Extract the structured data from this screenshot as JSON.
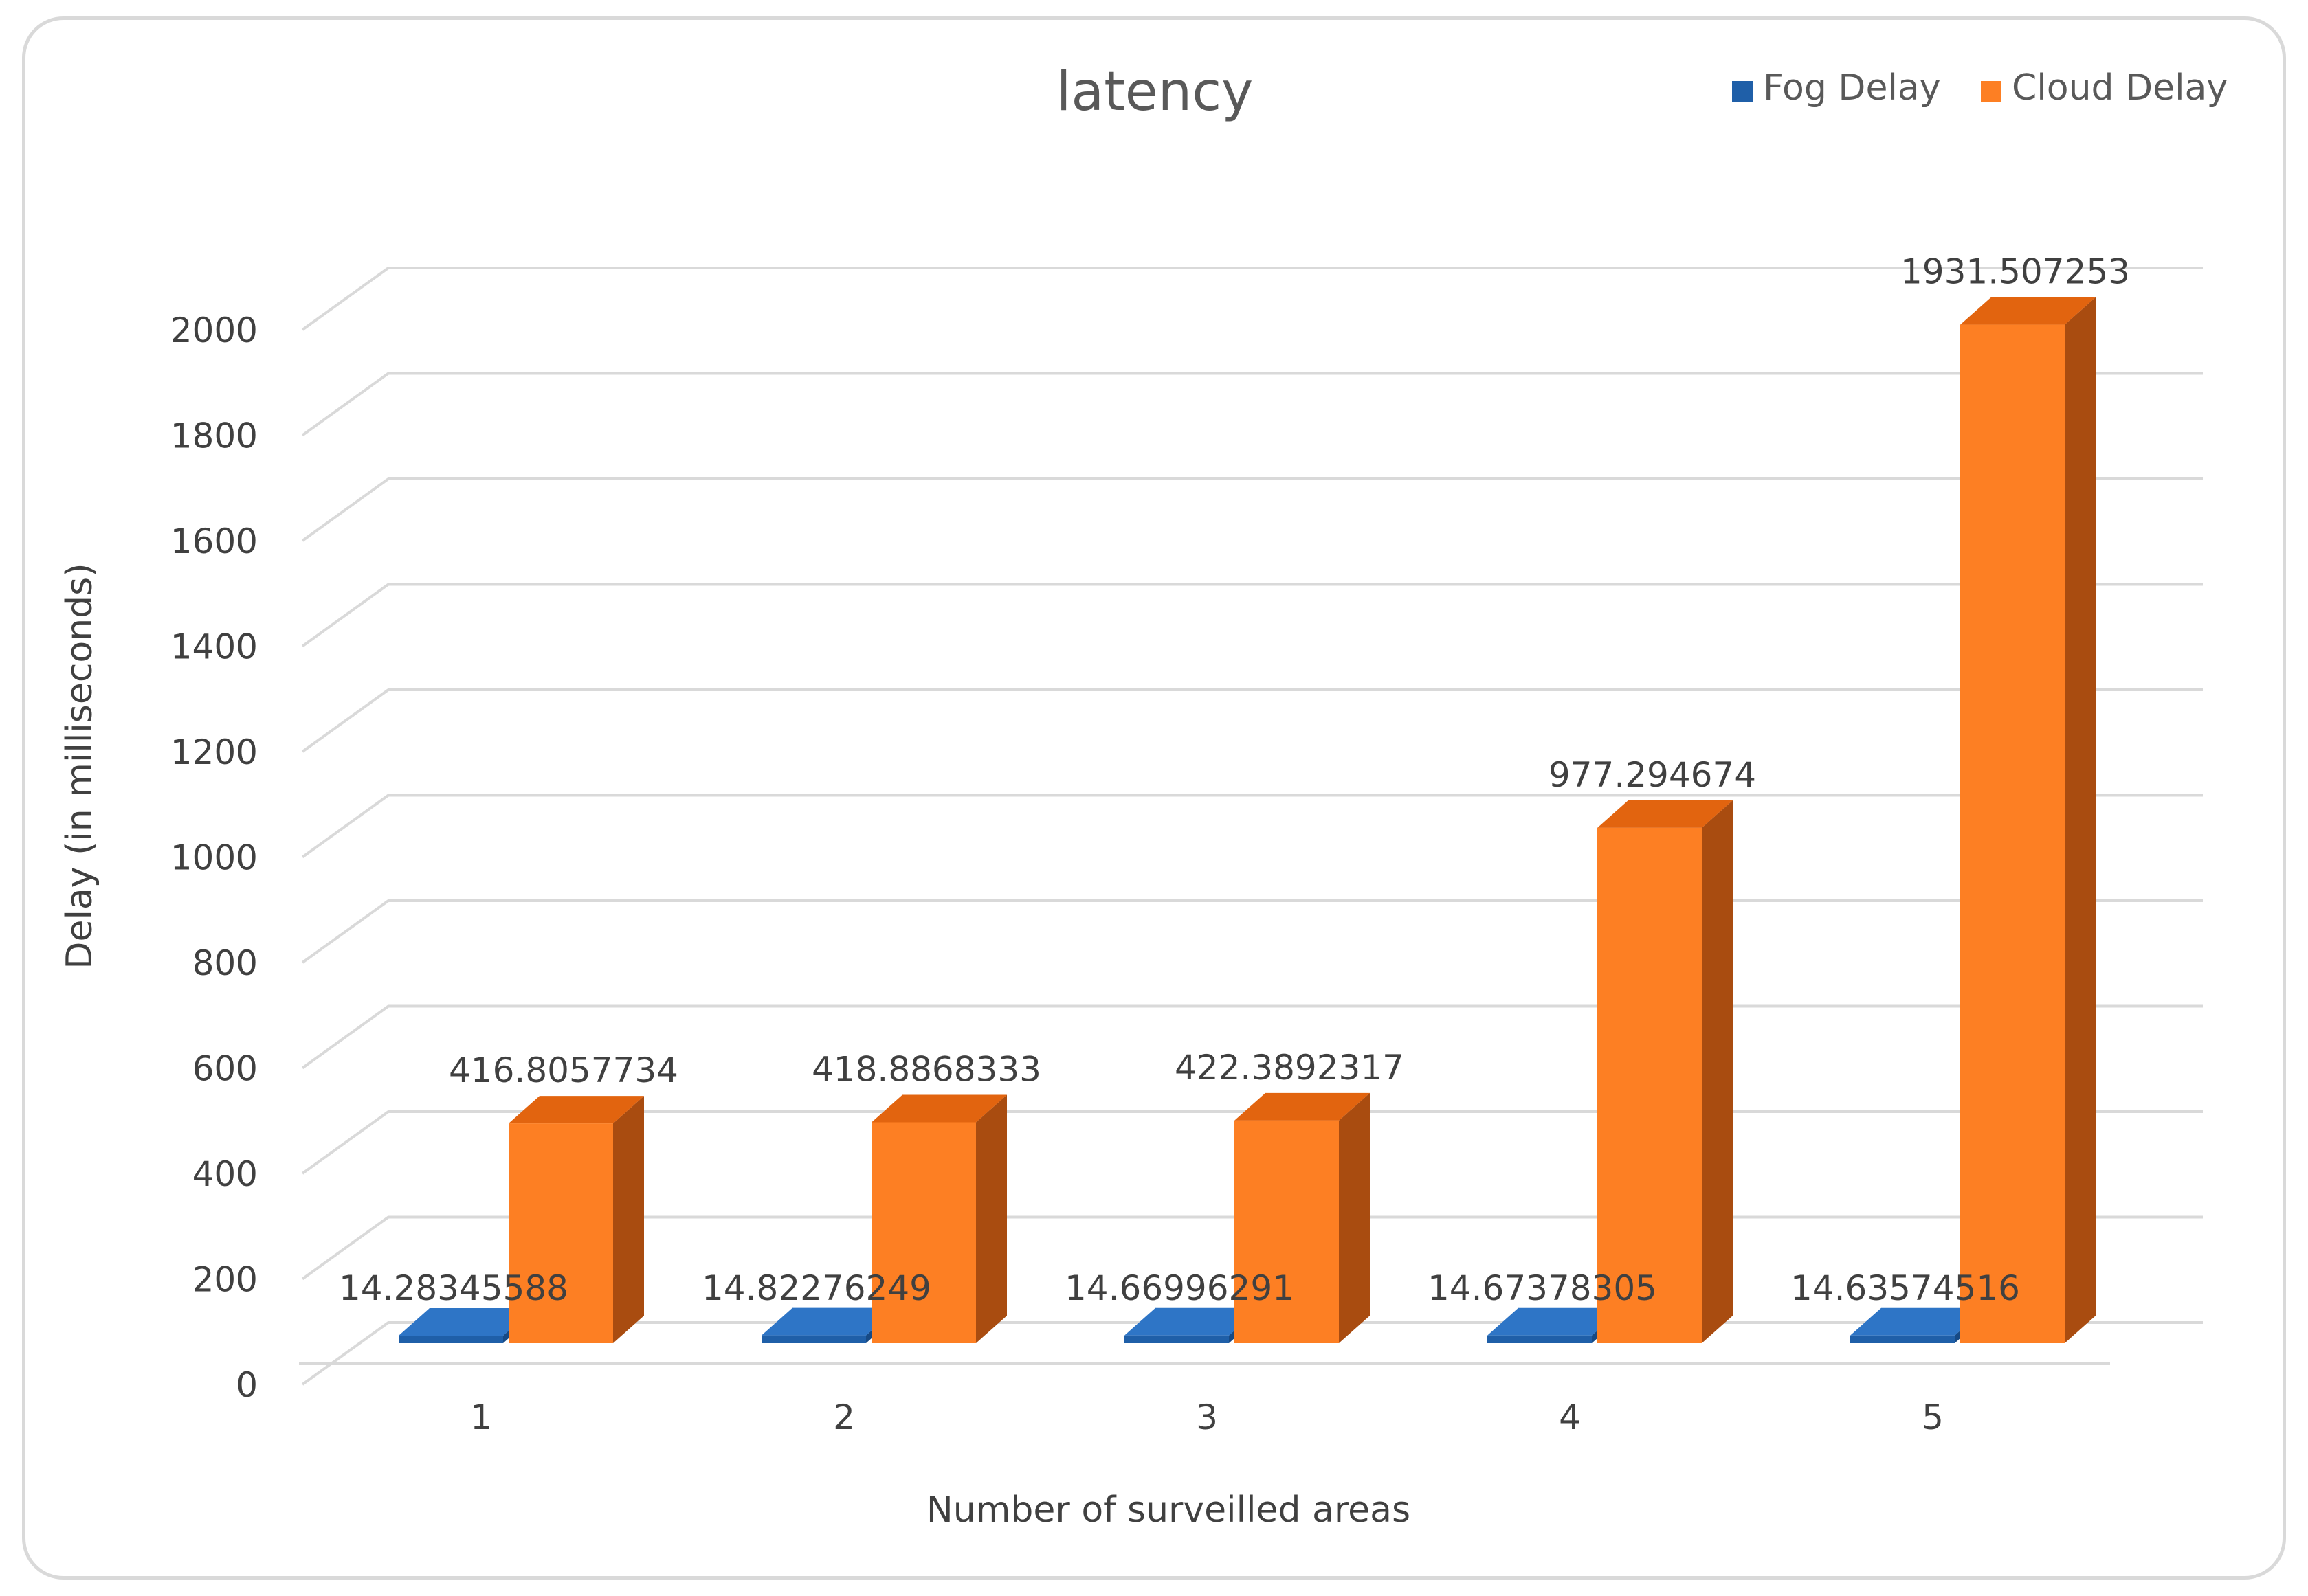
{
  "chart_data": {
    "type": "bar",
    "title": "latency",
    "xlabel": "Number  of surveilled areas",
    "ylabel": "Delay (in milliseconds)",
    "categories": [
      "1",
      "2",
      "3",
      "4",
      "5"
    ],
    "series": [
      {
        "name": "Fog Delay",
        "values": [
          14.28345588,
          14.82276249,
          14.66996291,
          14.67378305,
          14.63574516
        ],
        "labels": [
          "14.28345588",
          "14.82276249",
          "14.66996291",
          "14.67378305",
          "14.63574516"
        ]
      },
      {
        "name": "Cloud Delay",
        "values": [
          416.8057734,
          418.8868333,
          422.3892317,
          977.294674,
          1931.507253
        ],
        "labels": [
          "416.8057734",
          "418.8868333",
          "422.3892317",
          "977.294674",
          "1931.507253"
        ]
      }
    ],
    "ylim": [
      0,
      2000
    ],
    "yticks": [
      "0",
      "200",
      "400",
      "600",
      "800",
      "1000",
      "1200",
      "1400",
      "1600",
      "1800",
      "2000"
    ],
    "grid": true,
    "legend_position": "top-right",
    "colors": {
      "fog_front": "#1f5fa8",
      "fog_top": "#2e75c6",
      "fog_side": "#174a85",
      "cloud_front": "#fd7f23",
      "cloud_top": "#e2640f",
      "cloud_side": "#a94c10",
      "grid": "#d9d9d9",
      "text": "#404040",
      "title": "#595959"
    }
  }
}
